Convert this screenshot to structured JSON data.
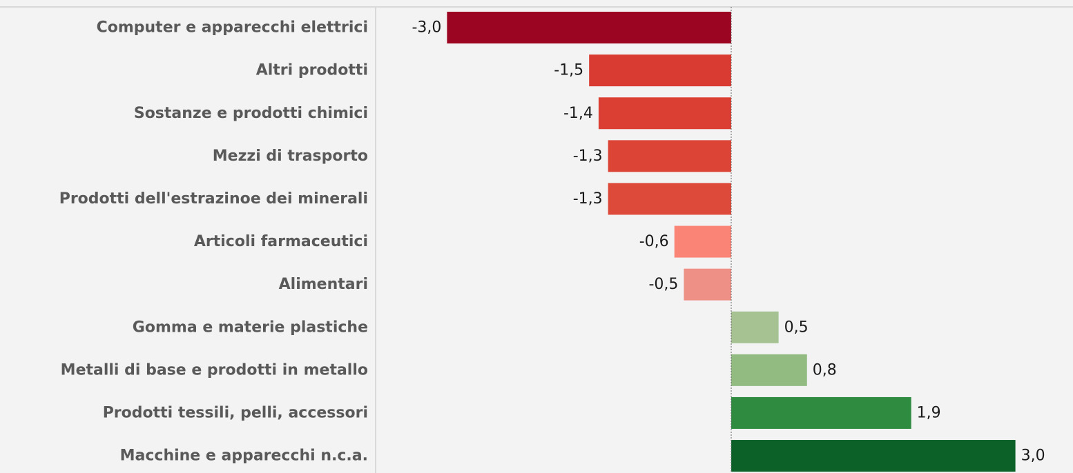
{
  "chart_data": {
    "type": "bar",
    "orientation": "horizontal",
    "title": "",
    "xlabel": "",
    "ylabel": "",
    "xlim": [
      -3.7,
      4.3
    ],
    "grid": false,
    "legend": "none",
    "categories": [
      "Computer e apparecchi elettrici",
      "Altri prodotti",
      "Sostanze e prodotti chimici",
      "Mezzi di trasporto",
      "Prodotti dell'estrazinoe dei minerali",
      "Articoli farmaceutici",
      "Alimentari",
      "Gomma e materie plastiche",
      "Metalli di base e prodotti in metallo",
      "Prodotti tessili, pelli, accessori",
      "Macchine e apparecchi n.c.a."
    ],
    "values": [
      -3.0,
      -1.5,
      -1.4,
      -1.3,
      -1.3,
      -0.6,
      -0.5,
      0.5,
      0.8,
      1.9,
      3.0
    ],
    "value_labels": [
      "-3,0",
      "-1,5",
      "-1,4",
      "-1,3",
      "-1,3",
      "-0,6",
      "-0,5",
      "0,5",
      "0,8",
      "1,9",
      "3,0"
    ],
    "colors": [
      "#9c0522",
      "#d93a31",
      "#db3e33",
      "#dc4435",
      "#dd4a39",
      "#fa8476",
      "#ef9086",
      "#a6c293",
      "#92bb82",
      "#2e8b3f",
      "#0b6128"
    ]
  }
}
